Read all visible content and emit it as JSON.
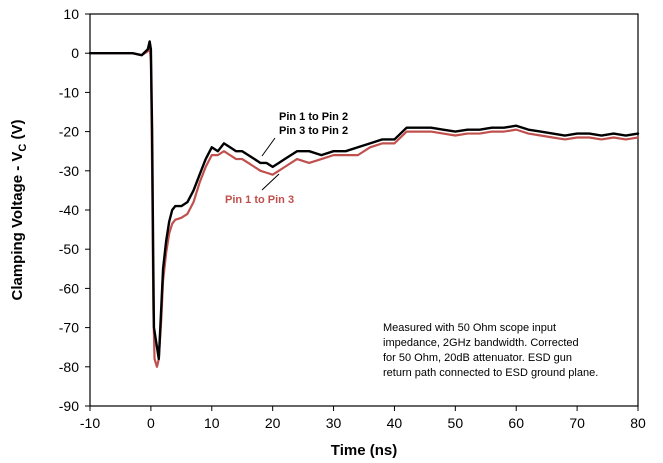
{
  "chart_data": {
    "type": "line",
    "xlabel": "Time (ns)",
    "ylabel": "Clamping Voltage - V",
    "ylabel_sub": "C",
    "ylabel_unit": " (V)",
    "xlim": [
      -10,
      80
    ],
    "ylim": [
      -90,
      10
    ],
    "xticks": [
      -10,
      0,
      10,
      20,
      30,
      40,
      50,
      60,
      70,
      80
    ],
    "yticks": [
      10,
      0,
      -10,
      -20,
      -30,
      -40,
      -50,
      -60,
      -70,
      -80,
      -90
    ],
    "grid": false,
    "legend": "none",
    "series": [
      {
        "name": "Pin 1 to Pin 2 / Pin 3 to Pin 2",
        "color": "#000000",
        "x": [
          -10,
          -6,
          -3,
          -1.5,
          -0.5,
          -0.2,
          0,
          0.2,
          0.4,
          0.5,
          0.7,
          1,
          1.3,
          1.7,
          2,
          2.5,
          3,
          3.5,
          4,
          5,
          6,
          7,
          8,
          9,
          10,
          11,
          12,
          13,
          14,
          15,
          16,
          17,
          18,
          19,
          20,
          21,
          22,
          24,
          26,
          28,
          30,
          32,
          34,
          36,
          38,
          40,
          42,
          44,
          46,
          48,
          50,
          52,
          54,
          56,
          58,
          60,
          62,
          64,
          66,
          68,
          70,
          72,
          74,
          76,
          78,
          80
        ],
        "y": [
          0,
          0,
          0,
          -0.5,
          1,
          3,
          1,
          -20,
          -55,
          -70,
          -72,
          -75,
          -78,
          -65,
          -55,
          -48,
          -43,
          -40,
          -39,
          -39,
          -38,
          -35,
          -31,
          -27,
          -24,
          -25,
          -23,
          -24,
          -25,
          -25,
          -26,
          -27,
          -28,
          -28,
          -29,
          -28,
          -27,
          -25,
          -25,
          -26,
          -25,
          -25,
          -24,
          -23,
          -22,
          -22,
          -19,
          -19,
          -19,
          -19.5,
          -20,
          -19.5,
          -19.5,
          -19,
          -19,
          -18.5,
          -19.5,
          -20,
          -20.5,
          -21,
          -20.5,
          -20.5,
          -21,
          -20.5,
          -21,
          -20.5
        ]
      },
      {
        "name": "Pin 1 to Pin 3",
        "color": "#c0504d",
        "x": [
          -10,
          -6,
          -3,
          -1.5,
          -0.5,
          -0.2,
          0,
          0.2,
          0.4,
          0.6,
          0.8,
          1,
          1.3,
          1.7,
          2,
          2.5,
          3,
          3.5,
          4,
          5,
          6,
          7,
          8,
          9,
          10,
          11,
          12,
          13,
          14,
          15,
          16,
          17,
          18,
          19,
          20,
          21,
          22,
          24,
          26,
          28,
          30,
          32,
          34,
          36,
          38,
          40,
          42,
          44,
          46,
          48,
          50,
          52,
          54,
          56,
          58,
          60,
          62,
          64,
          66,
          68,
          70,
          72,
          74,
          76,
          78,
          80
        ],
        "y": [
          0,
          0,
          0,
          -0.5,
          0.5,
          2,
          -2,
          -30,
          -65,
          -78,
          -79,
          -80,
          -78,
          -68,
          -58,
          -51,
          -46,
          -43.5,
          -42.5,
          -42,
          -41,
          -38,
          -33,
          -29,
          -26,
          -26,
          -25,
          -26,
          -27,
          -27,
          -28,
          -29,
          -30,
          -30.5,
          -31,
          -30,
          -29,
          -27,
          -28,
          -27,
          -26,
          -26,
          -26,
          -24,
          -23,
          -23,
          -20,
          -20,
          -20,
          -20.5,
          -21,
          -20.5,
          -20.5,
          -20,
          -20,
          -19.5,
          -20.5,
          -21,
          -21.5,
          -22,
          -21.5,
          -21.5,
          -22,
          -21.5,
          -22,
          -21.5
        ]
      }
    ],
    "annotations": {
      "black_line1": "Pin 1 to Pin 2",
      "black_line2": "Pin 3 to Pin 2",
      "red": "Pin 1 to Pin 3",
      "note": [
        "Measured with 50 Ohm scope input",
        "impedance, 2GHz bandwidth. Corrected",
        "for 50 Ohm, 20dB attenuator. ESD gun",
        "return path connected to ESD ground plane."
      ]
    }
  }
}
